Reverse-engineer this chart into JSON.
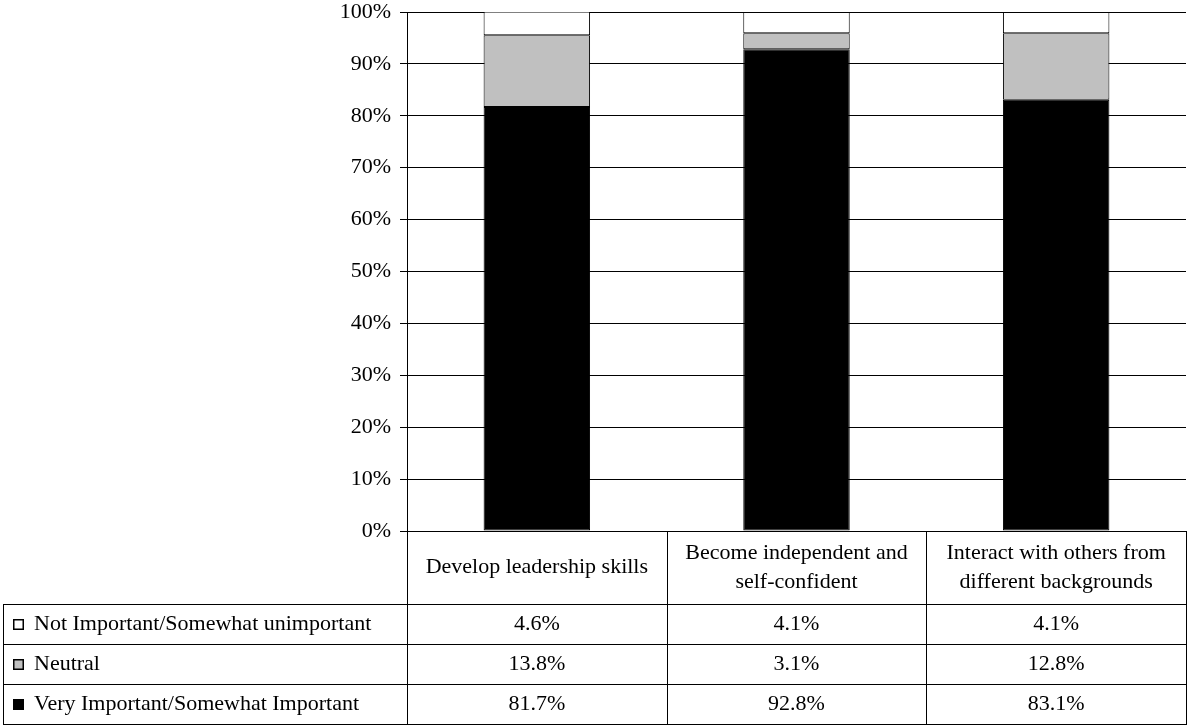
{
  "chart_data": {
    "type": "bar",
    "stacked": true,
    "categories": [
      "Develop leadership skills",
      "Become independent and self-confident",
      "Interact with others from different backgrounds"
    ],
    "series": [
      {
        "name": "Very Important/Somewhat Important",
        "color": "#000000",
        "values": [
          81.7,
          92.8,
          83.1
        ],
        "value_labels": [
          "81.7%",
          "92.8%",
          "83.1%"
        ]
      },
      {
        "name": "Neutral",
        "color": "#c0c0c0",
        "values": [
          13.8,
          3.1,
          12.8
        ],
        "value_labels": [
          "13.8%",
          "3.1%",
          "12.8%"
        ]
      },
      {
        "name": "Not Important/Somewhat unimportant",
        "color": "#ffffff",
        "values": [
          4.6,
          4.1,
          4.1
        ],
        "value_labels": [
          "4.6%",
          "4.1%",
          "4.1%"
        ]
      }
    ],
    "ylim": [
      0,
      100
    ],
    "yticks": [
      {
        "value": 0,
        "label": "0%"
      },
      {
        "value": 10,
        "label": "10%"
      },
      {
        "value": 20,
        "label": "20%"
      },
      {
        "value": 30,
        "label": "30%"
      },
      {
        "value": 40,
        "label": "40%"
      },
      {
        "value": 50,
        "label": "50%"
      },
      {
        "value": 60,
        "label": "60%"
      },
      {
        "value": 70,
        "label": "70%"
      },
      {
        "value": 80,
        "label": "80%"
      },
      {
        "value": 90,
        "label": "90%"
      },
      {
        "value": 100,
        "label": "100%"
      }
    ],
    "grid": "y",
    "legend": "bottom left"
  }
}
